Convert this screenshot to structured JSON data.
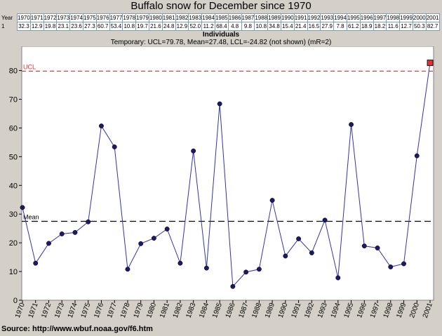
{
  "title": "Buffalo snow for December since 1970",
  "table": {
    "row1_label": "Year",
    "row2_label": "1",
    "years": [
      "1970",
      "1971",
      "1972",
      "1973",
      "1974",
      "1975",
      "1976",
      "1977",
      "1978",
      "1979",
      "1980",
      "1981",
      "1982",
      "1983",
      "1984",
      "1985",
      "1986",
      "1987",
      "1988",
      "1989",
      "1990",
      "1991",
      "1992",
      "1993",
      "1994",
      "1995",
      "1996",
      "1997",
      "1998",
      "1999",
      "2000",
      "2001"
    ],
    "values": [
      "32.3",
      "12.9",
      "19.8",
      "23.1",
      "23.6",
      "27.3",
      "60.7",
      "53.4",
      "10.8",
      "19.7",
      "21.6",
      "24.8",
      "12.9",
      "52.0",
      "11.2",
      "68.4",
      "4.8",
      "9.8",
      "10.8",
      "34.8",
      "15.4",
      "21.4",
      "16.5",
      "27.9",
      "7.8",
      "61.2",
      "18.9",
      "18.2",
      "11.6",
      "12.7",
      "50.3",
      "82.7"
    ]
  },
  "chart_data": {
    "type": "line",
    "title": "Individuals",
    "subtitle": "Temporary: UCL=79.78, Mean=27.48, LCL=-24.82 (not shown) (mR=2)",
    "categories": [
      "1970",
      "1971",
      "1972",
      "1973",
      "1974",
      "1975",
      "1976",
      "1977",
      "1978",
      "1979",
      "1980",
      "1981",
      "1982",
      "1983",
      "1984",
      "1985",
      "1986",
      "1987",
      "1988",
      "1989",
      "1990",
      "1991",
      "1992",
      "1993",
      "1994",
      "1995",
      "1996",
      "1997",
      "1998",
      "1999",
      "2000",
      "2001"
    ],
    "values": [
      32.3,
      12.9,
      19.8,
      23.1,
      23.6,
      27.3,
      60.7,
      53.4,
      10.8,
      19.7,
      21.6,
      24.8,
      12.9,
      52.0,
      11.2,
      68.4,
      4.8,
      9.8,
      10.8,
      34.8,
      15.4,
      21.4,
      16.5,
      27.9,
      7.8,
      61.2,
      18.9,
      18.2,
      11.6,
      12.7,
      50.3,
      82.7
    ],
    "ylim": [
      0,
      86
    ],
    "yticks": [
      0,
      10,
      20,
      30,
      40,
      50,
      60,
      70,
      80
    ],
    "ucl": 79.78,
    "mean": 27.48,
    "ucl_label": "UCL",
    "mean_label": "Mean",
    "flagged_index": 31,
    "grid": false,
    "colors": {
      "line": "#3333aa",
      "point": "#1a1a66",
      "flagged_point": "#dd3333",
      "ucl": "#e03030",
      "mean": "#000000",
      "plot_bg": "#ffffff"
    }
  },
  "source": "Source: http://www.wbuf.noaa.gov/f6.htm"
}
